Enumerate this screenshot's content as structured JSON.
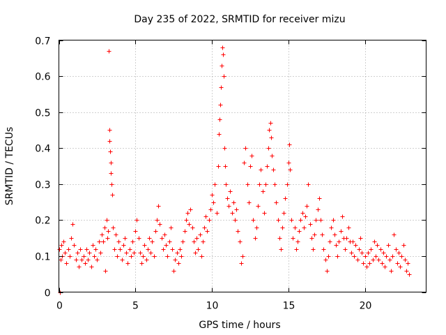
{
  "chart_data": {
    "type": "scatter",
    "title": "Day 235 of 2022, SRMTID for receiver mizu",
    "xlabel": "GPS time / hours",
    "ylabel": "SRMTID / TECUs",
    "xlim": [
      0,
      24
    ],
    "ylim": [
      0,
      0.7
    ],
    "xticks": [
      "0",
      "5",
      "10",
      "15",
      "20"
    ],
    "yticks": [
      "0",
      "0.1",
      "0.2",
      "0.3",
      "0.4",
      "0.5",
      "0.6",
      "0.7"
    ],
    "grid": true,
    "marker": "+",
    "color": "#ff0000",
    "series": [
      {
        "name": "SRMTID",
        "points": [
          [
            0.0,
            0.12
          ],
          [
            0.05,
            0.0
          ],
          [
            0.1,
            0.09
          ],
          [
            0.15,
            0.13
          ],
          [
            0.2,
            0.1
          ],
          [
            0.3,
            0.14
          ],
          [
            0.4,
            0.11
          ],
          [
            0.5,
            0.08
          ],
          [
            0.6,
            0.12
          ],
          [
            0.7,
            0.1
          ],
          [
            0.8,
            0.15
          ],
          [
            0.9,
            0.19
          ],
          [
            1.0,
            0.13
          ],
          [
            1.1,
            0.09
          ],
          [
            1.2,
            0.11
          ],
          [
            1.3,
            0.07
          ],
          [
            1.4,
            0.12
          ],
          [
            1.5,
            0.09
          ],
          [
            1.6,
            0.1
          ],
          [
            1.7,
            0.08
          ],
          [
            1.8,
            0.12
          ],
          [
            1.9,
            0.09
          ],
          [
            2.0,
            0.11
          ],
          [
            2.1,
            0.07
          ],
          [
            2.2,
            0.13
          ],
          [
            2.3,
            0.1
          ],
          [
            2.4,
            0.12
          ],
          [
            2.5,
            0.09
          ],
          [
            2.6,
            0.14
          ],
          [
            2.7,
            0.11
          ],
          [
            2.8,
            0.16
          ],
          [
            2.9,
            0.14
          ],
          [
            3.0,
            0.18
          ],
          [
            3.05,
            0.06
          ],
          [
            3.1,
            0.2
          ],
          [
            3.15,
            0.15
          ],
          [
            3.2,
            0.17
          ],
          [
            3.25,
            0.67
          ],
          [
            3.3,
            0.45
          ],
          [
            3.32,
            0.42
          ],
          [
            3.35,
            0.39
          ],
          [
            3.38,
            0.36
          ],
          [
            3.4,
            0.33
          ],
          [
            3.45,
            0.3
          ],
          [
            3.5,
            0.27
          ],
          [
            3.55,
            0.18
          ],
          [
            3.6,
            0.12
          ],
          [
            3.7,
            0.16
          ],
          [
            3.8,
            0.1
          ],
          [
            3.9,
            0.14
          ],
          [
            4.0,
            0.12
          ],
          [
            4.1,
            0.09
          ],
          [
            4.2,
            0.13
          ],
          [
            4.3,
            0.15
          ],
          [
            4.4,
            0.11
          ],
          [
            4.5,
            0.08
          ],
          [
            4.6,
            0.12
          ],
          [
            4.7,
            0.1
          ],
          [
            4.8,
            0.14
          ],
          [
            4.9,
            0.11
          ],
          [
            5.0,
            0.17
          ],
          [
            5.1,
            0.2
          ],
          [
            5.2,
            0.15
          ],
          [
            5.3,
            0.11
          ],
          [
            5.4,
            0.08
          ],
          [
            5.5,
            0.1
          ],
          [
            5.6,
            0.13
          ],
          [
            5.7,
            0.09
          ],
          [
            5.8,
            0.12
          ],
          [
            5.9,
            0.15
          ],
          [
            6.0,
            0.11
          ],
          [
            6.1,
            0.14
          ],
          [
            6.2,
            0.1
          ],
          [
            6.3,
            0.17
          ],
          [
            6.4,
            0.2
          ],
          [
            6.5,
            0.24
          ],
          [
            6.6,
            0.19
          ],
          [
            6.7,
            0.15
          ],
          [
            6.8,
            0.12
          ],
          [
            6.9,
            0.16
          ],
          [
            7.0,
            0.13
          ],
          [
            7.1,
            0.1
          ],
          [
            7.2,
            0.14
          ],
          [
            7.3,
            0.18
          ],
          [
            7.4,
            0.12
          ],
          [
            7.5,
            0.06
          ],
          [
            7.6,
            0.09
          ],
          [
            7.7,
            0.11
          ],
          [
            7.8,
            0.08
          ],
          [
            7.9,
            0.12
          ],
          [
            8.0,
            0.1
          ],
          [
            8.1,
            0.14
          ],
          [
            8.2,
            0.17
          ],
          [
            8.3,
            0.2
          ],
          [
            8.4,
            0.22
          ],
          [
            8.5,
            0.19
          ],
          [
            8.6,
            0.23
          ],
          [
            8.7,
            0.18
          ],
          [
            8.8,
            0.14
          ],
          [
            8.9,
            0.11
          ],
          [
            9.0,
            0.15
          ],
          [
            9.1,
            0.12
          ],
          [
            9.2,
            0.16
          ],
          [
            9.3,
            0.1
          ],
          [
            9.4,
            0.14
          ],
          [
            9.5,
            0.18
          ],
          [
            9.6,
            0.21
          ],
          [
            9.7,
            0.17
          ],
          [
            9.8,
            0.2
          ],
          [
            9.9,
            0.23
          ],
          [
            10.0,
            0.27
          ],
          [
            10.1,
            0.25
          ],
          [
            10.2,
            0.3
          ],
          [
            10.3,
            0.22
          ],
          [
            10.4,
            0.35
          ],
          [
            10.45,
            0.44
          ],
          [
            10.5,
            0.48
          ],
          [
            10.55,
            0.52
          ],
          [
            10.6,
            0.57
          ],
          [
            10.65,
            0.63
          ],
          [
            10.7,
            0.68
          ],
          [
            10.72,
            0.66
          ],
          [
            10.75,
            0.6
          ],
          [
            10.8,
            0.4
          ],
          [
            10.85,
            0.35
          ],
          [
            10.9,
            0.3
          ],
          [
            11.0,
            0.26
          ],
          [
            11.1,
            0.24
          ],
          [
            11.2,
            0.28
          ],
          [
            11.3,
            0.22
          ],
          [
            11.4,
            0.25
          ],
          [
            11.5,
            0.2
          ],
          [
            11.6,
            0.23
          ],
          [
            11.7,
            0.17
          ],
          [
            11.8,
            0.14
          ],
          [
            11.9,
            0.08
          ],
          [
            12.0,
            0.1
          ],
          [
            12.1,
            0.36
          ],
          [
            12.2,
            0.4
          ],
          [
            12.3,
            0.3
          ],
          [
            12.4,
            0.25
          ],
          [
            12.5,
            0.35
          ],
          [
            12.6,
            0.38
          ],
          [
            12.7,
            0.2
          ],
          [
            12.8,
            0.15
          ],
          [
            12.9,
            0.18
          ],
          [
            13.0,
            0.24
          ],
          [
            13.1,
            0.3
          ],
          [
            13.2,
            0.34
          ],
          [
            13.3,
            0.28
          ],
          [
            13.4,
            0.22
          ],
          [
            13.5,
            0.3
          ],
          [
            13.6,
            0.35
          ],
          [
            13.7,
            0.4
          ],
          [
            13.75,
            0.45
          ],
          [
            13.8,
            0.47
          ],
          [
            13.85,
            0.43
          ],
          [
            13.9,
            0.38
          ],
          [
            14.0,
            0.34
          ],
          [
            14.1,
            0.3
          ],
          [
            14.2,
            0.25
          ],
          [
            14.3,
            0.2
          ],
          [
            14.4,
            0.15
          ],
          [
            14.5,
            0.12
          ],
          [
            14.6,
            0.18
          ],
          [
            14.7,
            0.22
          ],
          [
            14.8,
            0.26
          ],
          [
            14.9,
            0.3
          ],
          [
            15.0,
            0.36
          ],
          [
            15.05,
            0.41
          ],
          [
            15.1,
            0.34
          ],
          [
            15.2,
            0.2
          ],
          [
            15.3,
            0.15
          ],
          [
            15.4,
            0.18
          ],
          [
            15.5,
            0.12
          ],
          [
            15.6,
            0.14
          ],
          [
            15.7,
            0.17
          ],
          [
            15.8,
            0.2
          ],
          [
            15.9,
            0.22
          ],
          [
            16.0,
            0.18
          ],
          [
            16.1,
            0.21
          ],
          [
            16.2,
            0.24
          ],
          [
            16.3,
            0.3
          ],
          [
            16.4,
            0.19
          ],
          [
            16.5,
            0.15
          ],
          [
            16.6,
            0.12
          ],
          [
            16.7,
            0.16
          ],
          [
            16.8,
            0.2
          ],
          [
            16.9,
            0.23
          ],
          [
            17.0,
            0.26
          ],
          [
            17.1,
            0.2
          ],
          [
            17.2,
            0.16
          ],
          [
            17.3,
            0.12
          ],
          [
            17.4,
            0.09
          ],
          [
            17.5,
            0.06
          ],
          [
            17.6,
            0.1
          ],
          [
            17.7,
            0.14
          ],
          [
            17.8,
            0.18
          ],
          [
            17.9,
            0.2
          ],
          [
            18.0,
            0.16
          ],
          [
            18.1,
            0.13
          ],
          [
            18.2,
            0.1
          ],
          [
            18.3,
            0.14
          ],
          [
            18.4,
            0.17
          ],
          [
            18.5,
            0.21
          ],
          [
            18.6,
            0.15
          ],
          [
            18.7,
            0.12
          ],
          [
            18.8,
            0.15
          ],
          [
            18.9,
            0.18
          ],
          [
            19.0,
            0.14
          ],
          [
            19.1,
            0.11
          ],
          [
            19.2,
            0.14
          ],
          [
            19.3,
            0.1
          ],
          [
            19.4,
            0.13
          ],
          [
            19.5,
            0.09
          ],
          [
            19.6,
            0.12
          ],
          [
            19.7,
            0.15
          ],
          [
            19.8,
            0.11
          ],
          [
            19.9,
            0.08
          ],
          [
            20.0,
            0.1
          ],
          [
            20.1,
            0.07
          ],
          [
            20.2,
            0.11
          ],
          [
            20.3,
            0.08
          ],
          [
            20.4,
            0.12
          ],
          [
            20.5,
            0.09
          ],
          [
            20.6,
            0.14
          ],
          [
            20.7,
            0.1
          ],
          [
            20.8,
            0.13
          ],
          [
            20.9,
            0.09
          ],
          [
            21.0,
            0.12
          ],
          [
            21.1,
            0.08
          ],
          [
            21.2,
            0.11
          ],
          [
            21.3,
            0.07
          ],
          [
            21.4,
            0.1
          ],
          [
            21.5,
            0.13
          ],
          [
            21.6,
            0.09
          ],
          [
            21.7,
            0.06
          ],
          [
            21.8,
            0.1
          ],
          [
            21.9,
            0.16
          ],
          [
            22.0,
            0.12
          ],
          [
            22.1,
            0.08
          ],
          [
            22.2,
            0.11
          ],
          [
            22.3,
            0.07
          ],
          [
            22.4,
            0.1
          ],
          [
            22.5,
            0.13
          ],
          [
            22.6,
            0.09
          ],
          [
            22.7,
            0.06
          ],
          [
            22.8,
            0.08
          ],
          [
            22.9,
            0.05
          ]
        ]
      }
    ]
  }
}
